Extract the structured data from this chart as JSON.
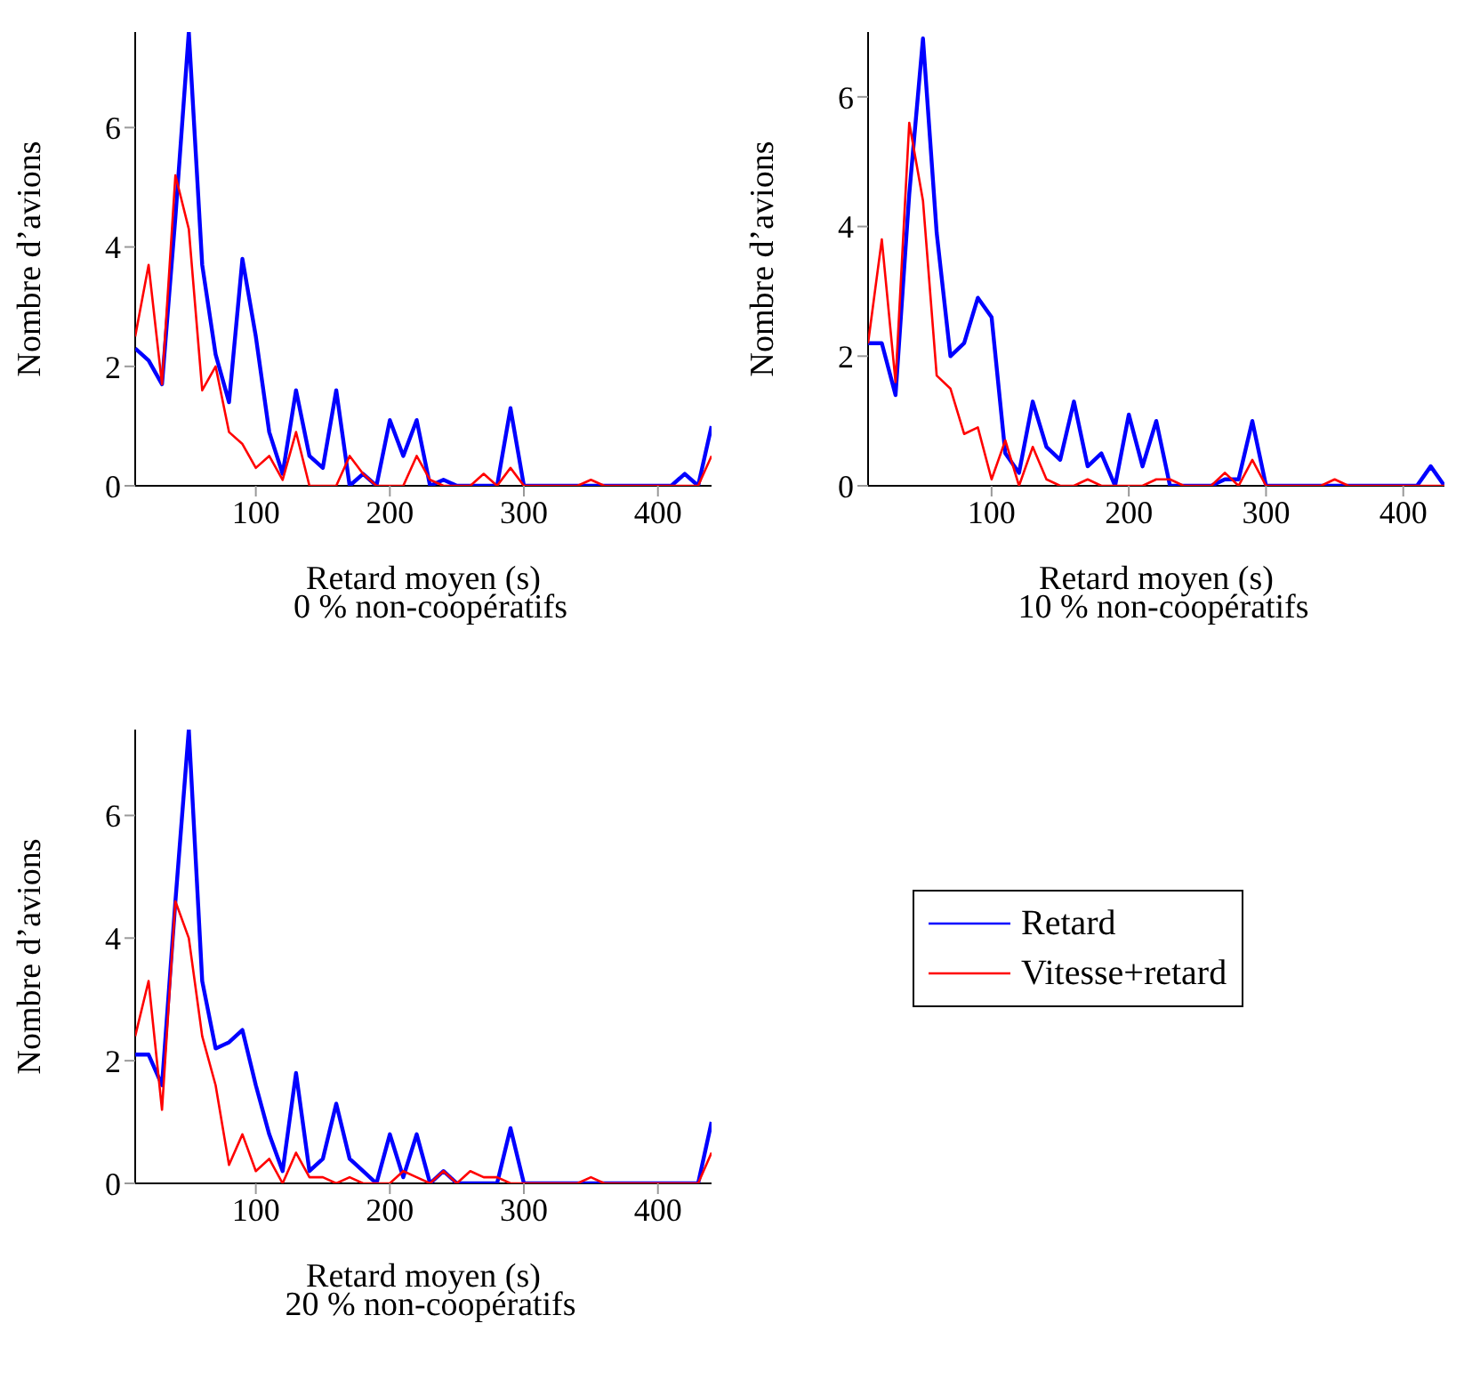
{
  "chart_data": [
    {
      "type": "line",
      "title": "0 % non-coopératifs",
      "xlabel": "Retard moyen (s)",
      "ylabel": "Nombre d’avions",
      "legend": "bottom right",
      "x": [
        10,
        20,
        30,
        40,
        50,
        60,
        70,
        80,
        90,
        100,
        110,
        120,
        130,
        140,
        150,
        160,
        170,
        180,
        190,
        200,
        210,
        220,
        230,
        240,
        250,
        260,
        270,
        280,
        290,
        300,
        310,
        320,
        330,
        340,
        350,
        360,
        370,
        380,
        390,
        400,
        410,
        420,
        430,
        440
      ],
      "xlim": [
        10,
        440
      ],
      "xticks": [
        100,
        200,
        300,
        400
      ],
      "ylim": [
        0,
        7.6
      ],
      "yticks": [
        0,
        2,
        4,
        6
      ],
      "grid": false,
      "marker": "none",
      "line_style": "solid",
      "series": [
        {
          "name": "Retard",
          "color": "#0000ff",
          "values": [
            2.3,
            2.1,
            1.7,
            4.5,
            7.6,
            3.7,
            2.2,
            1.4,
            3.8,
            2.5,
            0.9,
            0.2,
            1.6,
            0.5,
            0.3,
            1.6,
            0,
            0.2,
            0,
            1.1,
            0.5,
            1.1,
            0,
            0.1,
            0,
            0,
            0,
            0,
            1.3,
            0,
            0,
            0,
            0,
            0,
            0,
            0,
            0,
            0,
            0,
            0,
            0,
            0.2,
            0,
            1.0
          ]
        },
        {
          "name": "Vitesse+retard",
          "color": "#ff0000",
          "values": [
            2.5,
            3.7,
            1.7,
            5.2,
            4.3,
            1.6,
            2.0,
            0.9,
            0.7,
            0.3,
            0.5,
            0.1,
            0.9,
            0,
            0,
            0,
            0.5,
            0.2,
            0,
            0,
            0,
            0.5,
            0.1,
            0,
            0,
            0,
            0.2,
            0,
            0.3,
            0,
            0,
            0,
            0,
            0,
            0.1,
            0,
            0,
            0,
            0,
            0,
            0,
            0,
            0,
            0.5
          ]
        }
      ]
    },
    {
      "type": "line",
      "title": "10 % non-coopératifs",
      "xlabel": "Retard moyen (s)",
      "ylabel": "Nombre d’avions",
      "x": [
        10,
        20,
        30,
        40,
        50,
        60,
        70,
        80,
        90,
        100,
        110,
        120,
        130,
        140,
        150,
        160,
        170,
        180,
        190,
        200,
        210,
        220,
        230,
        240,
        250,
        260,
        270,
        280,
        290,
        300,
        310,
        320,
        330,
        340,
        350,
        360,
        370,
        380,
        390,
        400,
        410,
        420,
        430
      ],
      "xlim": [
        10,
        430
      ],
      "xticks": [
        100,
        200,
        300,
        400
      ],
      "ylim": [
        0,
        7.0
      ],
      "yticks": [
        0,
        2,
        4,
        6
      ],
      "grid": false,
      "marker": "none",
      "line_style": "solid",
      "series": [
        {
          "color": "#0000ff",
          "values": [
            2.2,
            2.2,
            1.4,
            4.5,
            6.9,
            3.9,
            2.0,
            2.2,
            2.9,
            2.6,
            0.5,
            0.2,
            1.3,
            0.6,
            0.4,
            1.3,
            0.3,
            0.5,
            0,
            1.1,
            0.3,
            1.0,
            0,
            0,
            0,
            0,
            0.1,
            0.1,
            1.0,
            0,
            0,
            0,
            0,
            0,
            0,
            0,
            0,
            0,
            0,
            0,
            0,
            0.3,
            0
          ]
        },
        {
          "color": "#ff0000",
          "values": [
            2.2,
            3.8,
            1.6,
            5.6,
            4.4,
            1.7,
            1.5,
            0.8,
            0.9,
            0.1,
            0.7,
            0,
            0.6,
            0.1,
            0,
            0,
            0.1,
            0,
            0,
            0,
            0,
            0.1,
            0.1,
            0,
            0,
            0,
            0.2,
            0,
            0.4,
            0,
            0,
            0,
            0,
            0,
            0.1,
            0,
            0,
            0,
            0,
            0,
            0,
            0,
            0
          ]
        }
      ]
    },
    {
      "type": "line",
      "title": "20 % non-coopératifs",
      "xlabel": "Retard moyen (s)",
      "ylabel": "Nombre d’avions",
      "x": [
        10,
        20,
        30,
        40,
        50,
        60,
        70,
        80,
        90,
        100,
        110,
        120,
        130,
        140,
        150,
        160,
        170,
        180,
        190,
        200,
        210,
        220,
        230,
        240,
        250,
        260,
        270,
        280,
        290,
        300,
        310,
        320,
        330,
        340,
        350,
        360,
        370,
        380,
        390,
        400,
        410,
        420,
        430,
        440
      ],
      "xlim": [
        10,
        440
      ],
      "xticks": [
        100,
        200,
        300,
        400
      ],
      "ylim": [
        0,
        7.4
      ],
      "yticks": [
        0,
        2,
        4,
        6
      ],
      "grid": false,
      "marker": "none",
      "line_style": "solid",
      "series": [
        {
          "color": "#0000ff",
          "values": [
            2.1,
            2.1,
            1.6,
            4.6,
            7.4,
            3.3,
            2.2,
            2.3,
            2.5,
            1.6,
            0.8,
            0.2,
            1.8,
            0.2,
            0.4,
            1.3,
            0.4,
            0.2,
            0,
            0.8,
            0.1,
            0.8,
            0,
            0.2,
            0,
            0,
            0,
            0,
            0.9,
            0,
            0,
            0,
            0,
            0,
            0,
            0,
            0,
            0,
            0,
            0,
            0,
            0,
            0,
            1.0
          ]
        },
        {
          "color": "#ff0000",
          "values": [
            2.4,
            3.3,
            1.2,
            4.6,
            4.0,
            2.4,
            1.6,
            0.3,
            0.8,
            0.2,
            0.4,
            0,
            0.5,
            0.1,
            0.1,
            0,
            0.1,
            0,
            0,
            0,
            0.2,
            0.1,
            0,
            0.2,
            0,
            0.2,
            0.1,
            0.1,
            0,
            0,
            0,
            0,
            0,
            0,
            0.1,
            0,
            0,
            0,
            0,
            0,
            0,
            0,
            0,
            0.5
          ]
        }
      ]
    }
  ]
}
